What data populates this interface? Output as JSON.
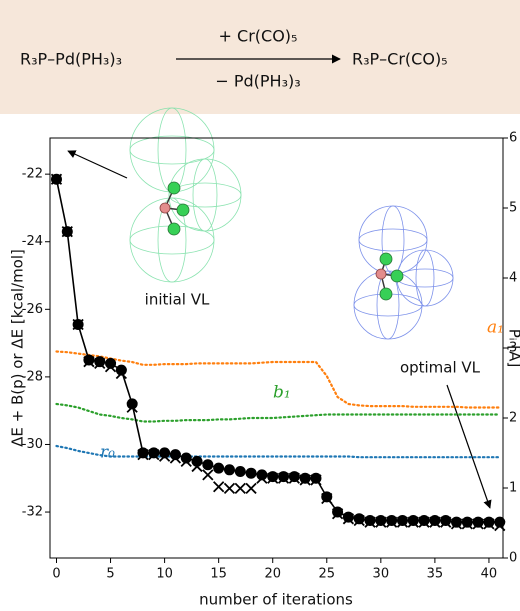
{
  "scheme": {
    "reactant": "R₃P–Pd(PH₃)₃",
    "above_arrow": "+ Cr(CO)₅",
    "below_arrow": "− Pd(PH₃)₃",
    "product": "R₃P–Cr(CO)₅"
  },
  "chart_data": {
    "type": "line",
    "xlabel": "number of iterations",
    "ylabel": "ΔE + B(p)  or  ΔE  [kcal/mol]",
    "y2label": "Pᵢ [Å]",
    "annotations": [
      "initial VL",
      "optimal VL"
    ],
    "x": [
      0,
      1,
      2,
      3,
      4,
      5,
      6,
      7,
      8,
      9,
      10,
      11,
      12,
      13,
      14,
      15,
      16,
      17,
      18,
      19,
      20,
      21,
      22,
      23,
      24,
      25,
      26,
      27,
      28,
      29,
      30,
      31,
      32,
      33,
      34,
      35,
      36,
      37,
      38,
      39,
      40,
      41
    ],
    "xlim": [
      -0.6,
      41.3
    ],
    "xticks": [
      0,
      5,
      10,
      15,
      20,
      25,
      30,
      35,
      40
    ],
    "ylim": [
      -33.36,
      -20.93
    ],
    "yticks": [
      -32,
      -30,
      -28,
      -26,
      -24,
      -22
    ],
    "y2lim": [
      0,
      6
    ],
    "y2ticks": [
      0,
      1,
      2,
      3,
      4,
      5,
      6
    ],
    "series": [
      {
        "marker": "o",
        "linestyle": "solid",
        "color": "#000000",
        "values": [
          -22.15,
          -23.7,
          -26.45,
          -27.5,
          -27.55,
          -27.6,
          -27.8,
          -28.8,
          -30.25,
          -30.25,
          -30.25,
          -30.3,
          -30.4,
          -30.5,
          -30.6,
          -30.7,
          -30.75,
          -30.8,
          -30.85,
          -30.9,
          -30.95,
          -30.95,
          -30.95,
          -31.0,
          -31.0,
          -31.55,
          -32.0,
          -32.15,
          -32.2,
          -32.25,
          -32.25,
          -32.25,
          -32.25,
          -32.25,
          -32.25,
          -32.25,
          -32.25,
          -32.3,
          -32.3,
          -32.3,
          -32.3,
          -32.3
        ]
      },
      {
        "marker": "x",
        "linestyle": "none",
        "color": "#000000",
        "values": [
          -22.15,
          -23.7,
          -26.45,
          -27.55,
          -27.6,
          -27.7,
          -27.9,
          -28.9,
          -30.3,
          -30.3,
          -30.35,
          -30.4,
          -30.5,
          -30.65,
          -30.9,
          -31.25,
          -31.3,
          -31.3,
          -31.3,
          -31.0,
          -31.0,
          -31.0,
          -31.0,
          -31.05,
          -31.05,
          -31.6,
          -32.05,
          -32.2,
          -32.25,
          -32.3,
          -32.3,
          -32.3,
          -32.3,
          -32.3,
          -32.3,
          -32.3,
          -32.3,
          -32.35,
          -32.35,
          -32.35,
          -32.35,
          -32.4
        ]
      },
      {
        "name": "a₁",
        "axis": "y2",
        "linestyle": "dotted",
        "color": "#ff7f0e",
        "values": [
          2.95,
          2.94,
          2.92,
          2.9,
          2.88,
          2.85,
          2.82,
          2.8,
          2.76,
          2.76,
          2.77,
          2.77,
          2.77,
          2.78,
          2.78,
          2.78,
          2.78,
          2.78,
          2.78,
          2.79,
          2.8,
          2.8,
          2.8,
          2.8,
          2.8,
          2.6,
          2.3,
          2.2,
          2.18,
          2.17,
          2.17,
          2.17,
          2.17,
          2.16,
          2.16,
          2.16,
          2.16,
          2.16,
          2.15,
          2.15,
          2.15,
          2.15
        ]
      },
      {
        "name": "b₁",
        "axis": "y2",
        "linestyle": "dotted",
        "color": "#2ca02c",
        "values": [
          2.2,
          2.18,
          2.15,
          2.1,
          2.05,
          2.03,
          2.0,
          1.98,
          1.95,
          1.95,
          1.96,
          1.96,
          1.97,
          1.97,
          1.97,
          1.98,
          1.98,
          1.99,
          2.0,
          2.0,
          2.0,
          2.01,
          2.02,
          2.03,
          2.04,
          2.05,
          2.05,
          2.05,
          2.05,
          2.05,
          2.05,
          2.05,
          2.05,
          2.05,
          2.05,
          2.05,
          2.05,
          2.05,
          2.05,
          2.05,
          2.05,
          2.05
        ]
      },
      {
        "name": "r₀",
        "axis": "y2",
        "linestyle": "dotted",
        "color": "#1f77b4",
        "values": [
          1.6,
          1.57,
          1.53,
          1.5,
          1.47,
          1.45,
          1.45,
          1.45,
          1.45,
          1.45,
          1.45,
          1.45,
          1.45,
          1.45,
          1.45,
          1.45,
          1.45,
          1.45,
          1.45,
          1.45,
          1.45,
          1.45,
          1.45,
          1.45,
          1.45,
          1.45,
          1.45,
          1.45,
          1.44,
          1.44,
          1.44,
          1.44,
          1.44,
          1.44,
          1.44,
          1.44,
          1.44,
          1.44,
          1.44,
          1.44,
          1.44,
          1.44
        ]
      }
    ]
  }
}
